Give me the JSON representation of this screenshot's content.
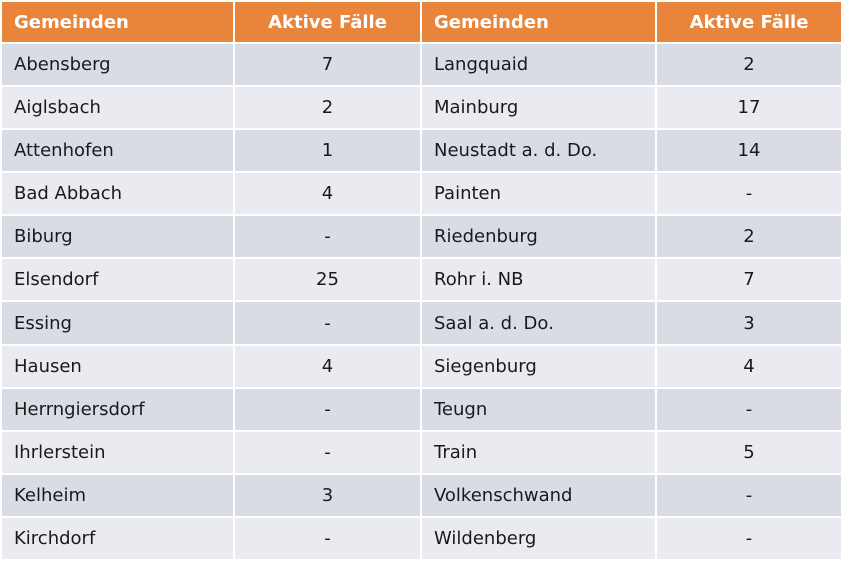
{
  "table": {
    "header": [
      "Gemeinden",
      "Aktive Fälle",
      "Gemeinden",
      "Aktive Fälle"
    ],
    "rows": [
      [
        "Abensberg",
        7,
        "Langquaid",
        2
      ],
      [
        "Aiglsbach",
        2,
        "Mainburg",
        17
      ],
      [
        "Attenhofen",
        1,
        "Neustadt a. d. Do.",
        14
      ],
      [
        "Bad Abbach",
        4,
        "Painten",
        "-"
      ],
      [
        "Biburg",
        "-",
        "Riedenburg",
        2
      ],
      [
        "Elsendorf",
        25,
        "Rohr i. NB",
        7
      ],
      [
        "Essing",
        "-",
        "Saal a. d. Do.",
        3
      ],
      [
        "Hausen",
        4,
        "Siegenburg",
        4
      ],
      [
        "Herrngiersdorf",
        "-",
        "Teugn",
        "-"
      ],
      [
        "Ihrlerstein",
        "-",
        "Train",
        5
      ],
      [
        "Kelheim",
        3,
        "Volkenschwand",
        "-"
      ],
      [
        "Kirchdorf",
        "-",
        "Wildenberg",
        "-"
      ]
    ]
  }
}
